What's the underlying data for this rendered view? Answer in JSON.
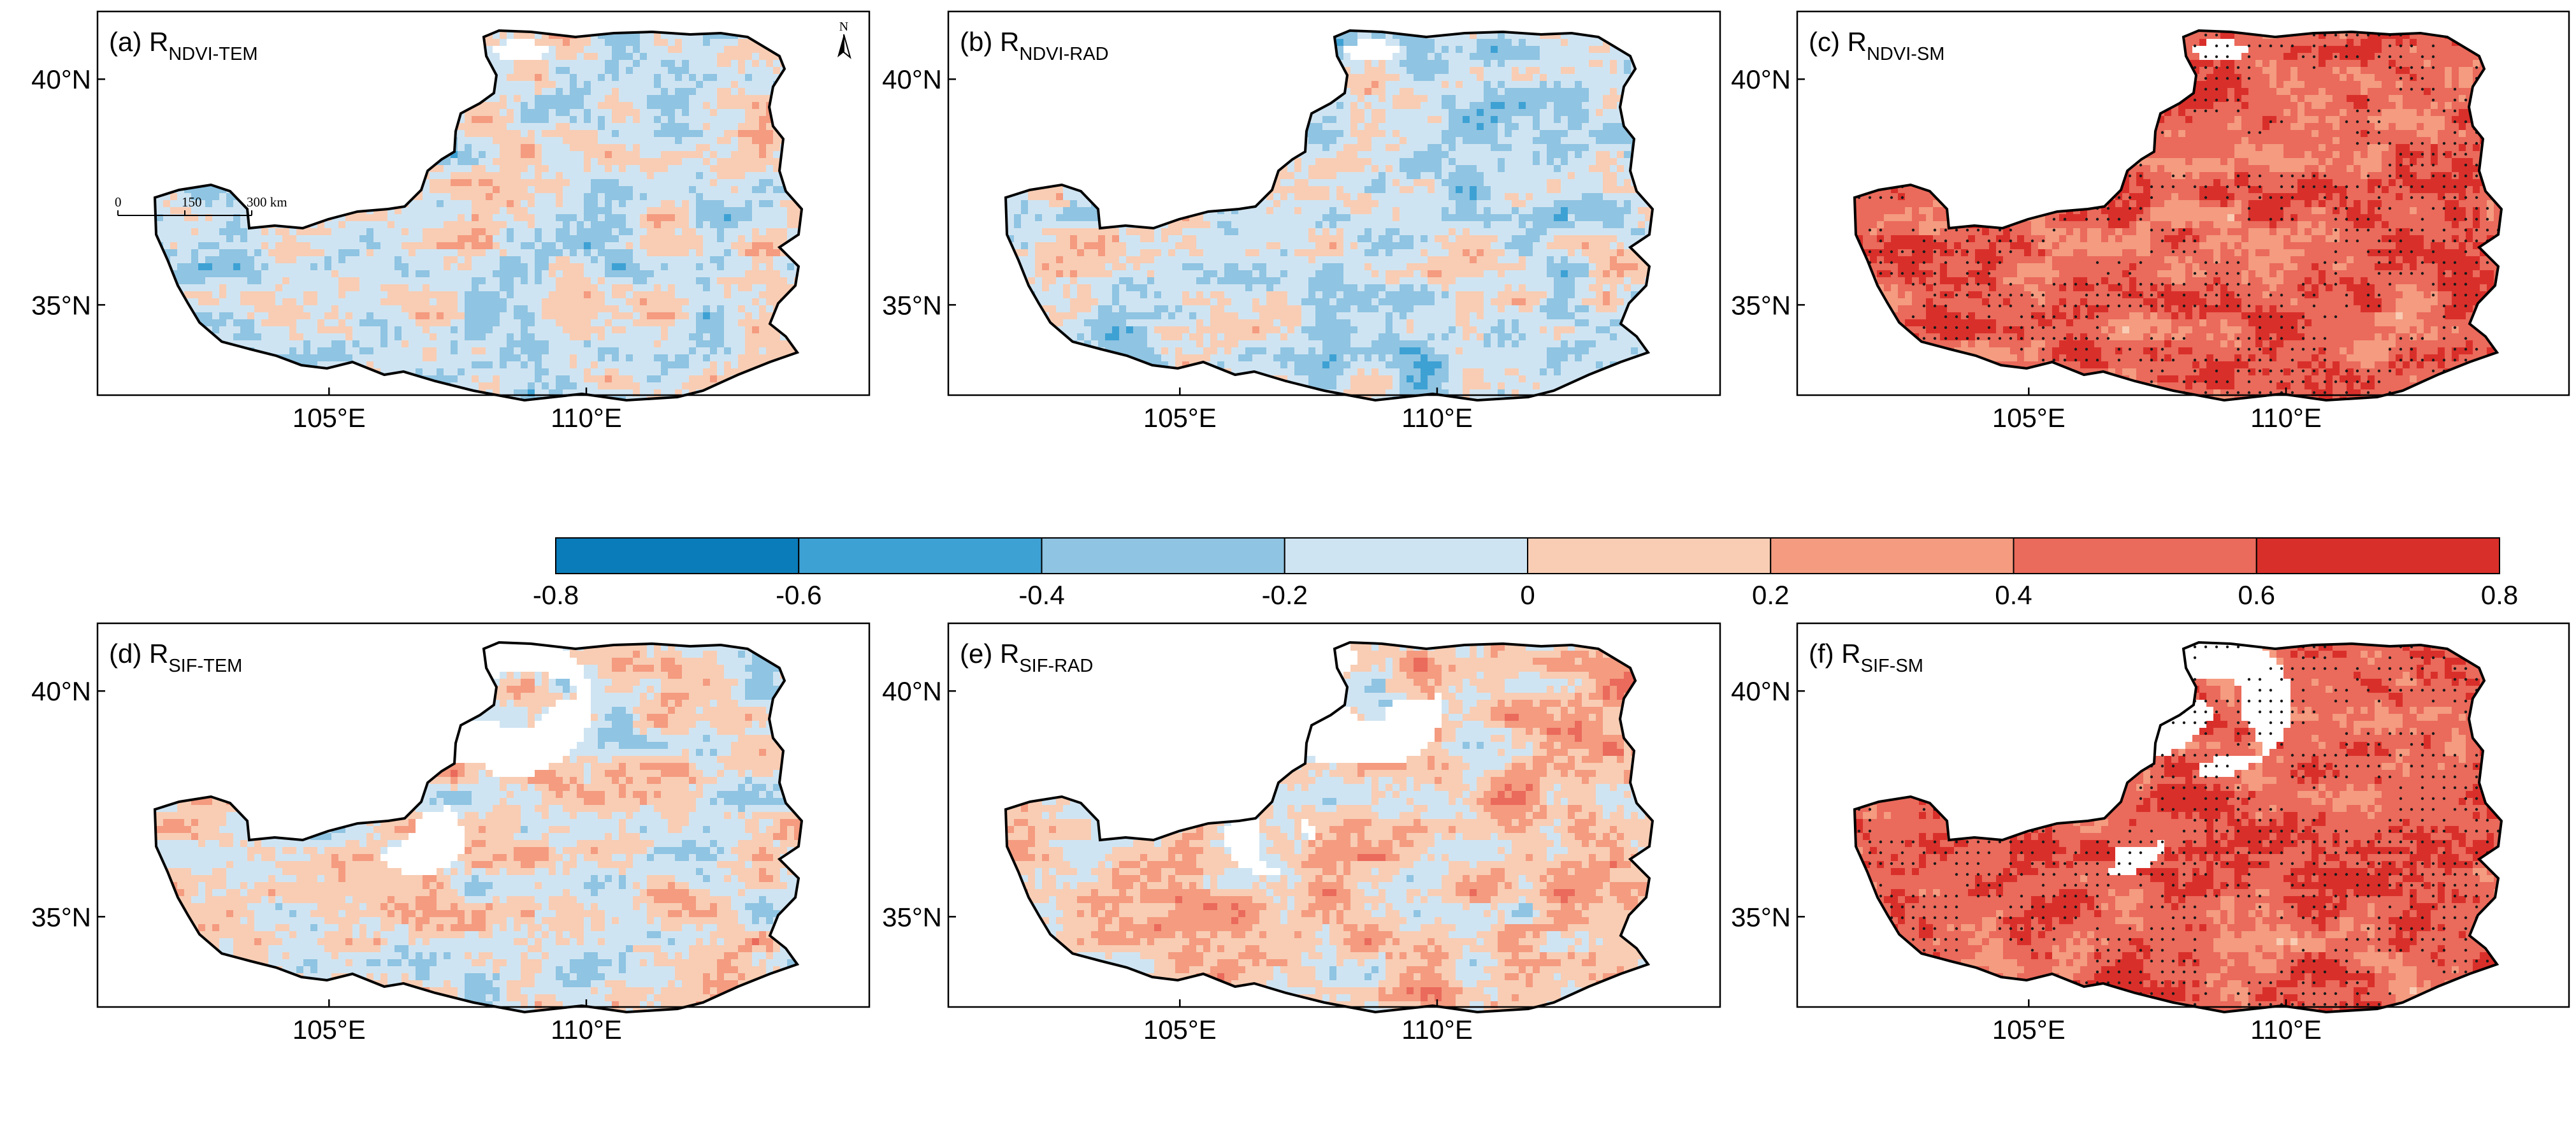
{
  "figure": {
    "map_extent": {
      "lon": [
        100.5,
        115.5
      ],
      "lat": [
        33,
        41.5
      ]
    },
    "lat_ticks": [
      {
        "value": 40,
        "label": "40°N"
      },
      {
        "value": 35,
        "label": "35°N"
      }
    ],
    "lon_ticks": [
      {
        "value": 105,
        "label": "105°E"
      },
      {
        "value": 110,
        "label": "110°E"
      }
    ],
    "panels": [
      {
        "id": "a",
        "prefix": "(a) R",
        "subscript": "NDVI-TEM",
        "mean_r": -0.05,
        "noise": 0.34,
        "missing_north": false,
        "has_scale_bar": true,
        "has_north_arrow": true
      },
      {
        "id": "b",
        "prefix": "(b) R",
        "subscript": "NDVI-RAD",
        "mean_r": -0.1,
        "noise": 0.34,
        "missing_north": false,
        "has_scale_bar": false,
        "has_north_arrow": false
      },
      {
        "id": "c",
        "prefix": "(c) R",
        "subscript": "NDVI-SM",
        "mean_r": 0.5,
        "noise": 0.28,
        "missing_north": false,
        "has_scale_bar": false,
        "has_north_arrow": false
      },
      {
        "id": "d",
        "prefix": "(d) R",
        "subscript": "SIF-TEM",
        "mean_r": 0.02,
        "noise": 0.36,
        "missing_north": true,
        "has_scale_bar": false,
        "has_north_arrow": false
      },
      {
        "id": "e",
        "prefix": "(e) R",
        "subscript": "SIF-RAD",
        "mean_r": 0.12,
        "noise": 0.36,
        "missing_north": true,
        "has_scale_bar": false,
        "has_north_arrow": false
      },
      {
        "id": "f",
        "prefix": "(f) R",
        "subscript": "SIF-SM",
        "mean_r": 0.52,
        "noise": 0.28,
        "missing_north": true,
        "has_scale_bar": false,
        "has_north_arrow": false
      }
    ],
    "scale_bar": {
      "labels": [
        "0",
        "150",
        "300 km"
      ]
    },
    "north_arrow": {
      "label": "N"
    },
    "colorbar": {
      "tick_labels": [
        "-0.8",
        "-0.6",
        "-0.4",
        "-0.2",
        "0",
        "0.2",
        "0.4",
        "0.6",
        "0.8"
      ],
      "colors": [
        "#0a7cba",
        "#3ea1d4",
        "#8fc4e2",
        "#cfe4f2",
        "#f8cdb4",
        "#f49b80",
        "#ea6a5b",
        "#d92f2a"
      ]
    },
    "colors": {
      "missing": "#ffffff",
      "boundary": "#000000",
      "significance_dot": "#1a1a1a"
    }
  }
}
